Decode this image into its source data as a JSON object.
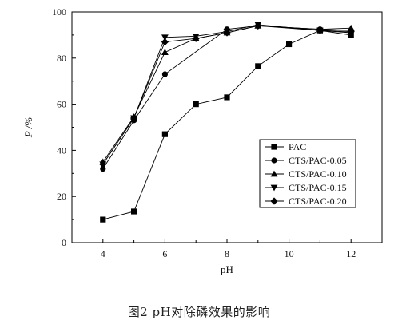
{
  "chart_data": {
    "type": "line",
    "xlabel": "pH",
    "ylabel": "P /%",
    "xlim": [
      3,
      13
    ],
    "ylim": [
      0,
      100
    ],
    "xticks": [
      4,
      6,
      8,
      10,
      12
    ],
    "yticks": [
      0,
      20,
      40,
      60,
      80,
      100
    ],
    "x": [
      4,
      5,
      6,
      7,
      8,
      9,
      10,
      11,
      12
    ],
    "series": [
      {
        "name": "PAC",
        "marker": "square",
        "x": [
          4,
          5,
          6,
          7,
          8,
          9,
          10,
          11,
          12
        ],
        "values": [
          10,
          13.5,
          47,
          60,
          63,
          76.5,
          86,
          92,
          90
        ]
      },
      {
        "name": "CTS/PAC-0.05",
        "marker": "circle",
        "x": [
          4,
          5,
          6,
          8,
          9,
          11,
          12
        ],
        "values": [
          32,
          53,
          73,
          92.5,
          94,
          92.5,
          92
        ]
      },
      {
        "name": "CTS/PAC-0.10",
        "marker": "triangle-up",
        "x": [
          4,
          5,
          6,
          7,
          8,
          9,
          11,
          12
        ],
        "values": [
          35,
          54.5,
          82.5,
          88.5,
          91,
          94,
          92.5,
          93
        ]
      },
      {
        "name": "CTS/PAC-0.15",
        "marker": "triangle-down",
        "x": [
          4,
          5,
          6,
          7,
          8,
          9,
          11,
          12
        ],
        "values": [
          34,
          54,
          89,
          89.5,
          91.5,
          94.5,
          92,
          91
        ]
      },
      {
        "name": "CTS/PAC-0.20",
        "marker": "diamond",
        "x": [
          4,
          5,
          6,
          7,
          8,
          9,
          11,
          12
        ],
        "values": [
          34,
          54,
          87,
          88.5,
          91,
          94,
          92,
          91.5
        ]
      }
    ],
    "legend_position": "lower-right",
    "grid": false,
    "line_color": "#000000"
  },
  "caption": "图2   pH对除磷效果的影响"
}
